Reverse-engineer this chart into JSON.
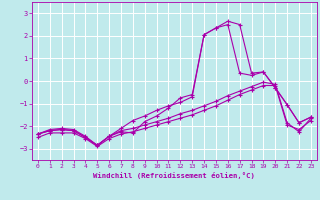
{
  "xlabel": "Windchill (Refroidissement éolien,°C)",
  "bg_color": "#c0eaec",
  "line_color": "#aa00aa",
  "grid_color": "#ffffff",
  "xlim": [
    -0.5,
    23.5
  ],
  "ylim": [
    -3.5,
    3.5
  ],
  "yticks": [
    -3,
    -2,
    -1,
    0,
    1,
    2,
    3
  ],
  "xticks": [
    0,
    1,
    2,
    3,
    4,
    5,
    6,
    7,
    8,
    9,
    10,
    11,
    12,
    13,
    14,
    15,
    16,
    17,
    18,
    19,
    20,
    21,
    22,
    23
  ],
  "series": [
    {
      "x": [
        0,
        1,
        2,
        3,
        4,
        5,
        6,
        7,
        8,
        9,
        10,
        11,
        12,
        13,
        14,
        15,
        16,
        17,
        18,
        19,
        20,
        21,
        22,
        23
      ],
      "y": [
        -2.35,
        -2.2,
        -2.15,
        -2.2,
        -2.5,
        -2.85,
        -2.45,
        -2.25,
        -2.3,
        -1.8,
        -1.55,
        -1.2,
        -0.75,
        -0.6,
        2.05,
        2.35,
        2.65,
        2.5,
        0.35,
        0.4,
        -0.3,
        -1.05,
        -1.85,
        -1.6
      ]
    },
    {
      "x": [
        0,
        1,
        2,
        3,
        4,
        5,
        6,
        7,
        8,
        9,
        10,
        11,
        12,
        13,
        14,
        15,
        16,
        17,
        18,
        19,
        20,
        21,
        22,
        23
      ],
      "y": [
        -2.35,
        -2.2,
        -2.15,
        -2.2,
        -2.5,
        -2.85,
        -2.45,
        -2.1,
        -1.75,
        -1.55,
        -1.3,
        -1.1,
        -0.95,
        -0.7,
        2.05,
        2.35,
        2.5,
        0.35,
        0.25,
        0.4,
        -0.3,
        -1.05,
        -1.85,
        -1.6
      ]
    },
    {
      "x": [
        0,
        1,
        2,
        3,
        4,
        5,
        6,
        7,
        8,
        9,
        10,
        11,
        12,
        13,
        14,
        15,
        16,
        17,
        18,
        19,
        20,
        21,
        22,
        23
      ],
      "y": [
        -2.35,
        -2.15,
        -2.1,
        -2.15,
        -2.45,
        -2.85,
        -2.45,
        -2.2,
        -2.1,
        -1.95,
        -1.8,
        -1.65,
        -1.45,
        -1.3,
        -1.1,
        -0.9,
        -0.65,
        -0.45,
        -0.25,
        -0.05,
        -0.15,
        -1.85,
        -2.25,
        -1.65
      ]
    },
    {
      "x": [
        0,
        1,
        2,
        3,
        4,
        5,
        6,
        7,
        8,
        9,
        10,
        11,
        12,
        13,
        14,
        15,
        16,
        17,
        18,
        19,
        20,
        21,
        22,
        23
      ],
      "y": [
        -2.5,
        -2.3,
        -2.3,
        -2.3,
        -2.55,
        -2.9,
        -2.55,
        -2.35,
        -2.25,
        -2.1,
        -1.95,
        -1.8,
        -1.65,
        -1.5,
        -1.3,
        -1.1,
        -0.85,
        -0.6,
        -0.4,
        -0.2,
        -0.2,
        -1.95,
        -2.15,
        -1.75
      ]
    }
  ]
}
